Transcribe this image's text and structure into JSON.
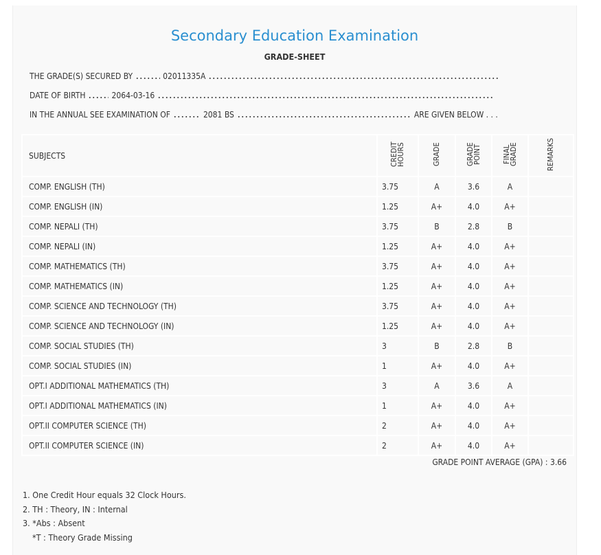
{
  "header": {
    "title": "Secondary Education Examination",
    "subtitle": "GRADE-SHEET"
  },
  "info": [
    {
      "label": "THE GRADE(S) SECURED BY",
      "value": "02011335A"
    },
    {
      "label": "DATE OF BIRTH",
      "value": "2064-03-16"
    },
    {
      "label": "IN THE ANNUAL SEE EXAMINATION OF",
      "value": "2081 BS",
      "suffix": "ARE GIVEN BELOW . . ."
    }
  ],
  "table": {
    "headers": [
      "SUBJECTS",
      "CREDIT HOURS",
      "GRADE",
      "GRADE POINT",
      "FINAL GRADE",
      "REMARKS"
    ],
    "rows": [
      [
        "COMP. ENGLISH (TH)",
        "3.75",
        "A",
        "3.6",
        "A"
      ],
      [
        "COMP. ENGLISH (IN)",
        "1.25",
        "A+",
        "4.0",
        "A+"
      ],
      [
        "COMP. NEPALI (TH)",
        "3.75",
        "B",
        "2.8",
        "B"
      ],
      [
        "COMP. NEPALI (IN)",
        "1.25",
        "A+",
        "4.0",
        "A+"
      ],
      [
        "COMP. MATHEMATICS (TH)",
        "3.75",
        "A+",
        "4.0",
        "A+"
      ],
      [
        "COMP. MATHEMATICS (IN)",
        "1.25",
        "A+",
        "4.0",
        "A+"
      ],
      [
        "COMP. SCIENCE AND TECHNOLOGY (TH)",
        "3.75",
        "A+",
        "4.0",
        "A+"
      ],
      [
        "COMP. SCIENCE AND TECHNOLOGY (IN)",
        "1.25",
        "A+",
        "4.0",
        "A+"
      ],
      [
        "COMP. SOCIAL STUDIES (TH)",
        "3",
        "B",
        "2.8",
        "B"
      ],
      [
        "COMP. SOCIAL STUDIES (IN)",
        "1",
        "A+",
        "4.0",
        "A+"
      ],
      [
        "OPT.I ADDITIONAL MATHEMATICS (TH)",
        "3",
        "A",
        "3.6",
        "A"
      ],
      [
        "OPT.I ADDITIONAL MATHEMATICS (IN)",
        "1",
        "A+",
        "4.0",
        "A+"
      ],
      [
        "OPT.II COMPUTER SCIENCE (TH)",
        "2",
        "A+",
        "4.0",
        "A+"
      ],
      [
        "OPT.II COMPUTER SCIENCE (IN)",
        "2",
        "A+",
        "4.0",
        "A+"
      ]
    ]
  },
  "gpa": {
    "label": "GRADE POINT AVERAGE (GPA) :",
    "value": "3.66"
  },
  "notes": [
    "1. One Credit Hour equals 32 Clock Hours.",
    "2. TH : Theory, IN : Internal",
    "3. *Abs : Absent",
    "*T : Theory Grade Missing"
  ]
}
